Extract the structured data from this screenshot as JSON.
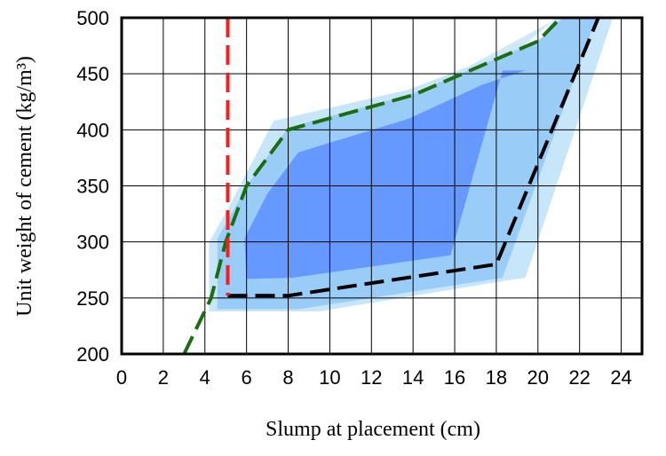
{
  "chart_data": {
    "type": "area",
    "xlabel": "Slump at placement (cm)",
    "ylabel": "Unit weight of cement (kg/m³)",
    "xlim": [
      0,
      25
    ],
    "ylim": [
      200,
      500
    ],
    "xticks": [
      0,
      2,
      4,
      6,
      8,
      10,
      12,
      14,
      16,
      18,
      20,
      22,
      24
    ],
    "yticks": [
      200,
      250,
      300,
      350,
      400,
      450,
      500
    ],
    "xtick_labels": [
      "0",
      "2",
      "4",
      "6",
      "8",
      "10",
      "12",
      "14",
      "16",
      "18",
      "20",
      "22",
      "24"
    ],
    "ytick_labels": [
      "200",
      "250",
      "300",
      "350",
      "400",
      "450",
      "500"
    ],
    "grid": true,
    "regions": [
      {
        "level": "outer",
        "color": "#cfe9fb",
        "polygon": [
          [
            4.2,
            240
          ],
          [
            8.5,
            240
          ],
          [
            18.5,
            268
          ],
          [
            22.6,
            500
          ],
          [
            23.6,
            500
          ],
          [
            21.1,
            425
          ],
          [
            19.3,
            268
          ],
          [
            9.5,
            238
          ],
          [
            4.2,
            238
          ],
          [
            4.2,
            300
          ],
          [
            7.5,
            408
          ],
          [
            15,
            440
          ],
          [
            21,
            500
          ],
          [
            21.1,
            503
          ]
        ]
      },
      {
        "level": "outer-fill",
        "color": "#c8e6fa",
        "polygon": [
          [
            4.2,
            238
          ],
          [
            9.5,
            238
          ],
          [
            18.5,
            266
          ],
          [
            19.4,
            268
          ],
          [
            23.6,
            500
          ],
          [
            20.8,
            500
          ],
          [
            20.2,
            482
          ],
          [
            13.8,
            436
          ],
          [
            7.3,
            408
          ],
          [
            4.2,
            297
          ]
        ]
      },
      {
        "level": "middle",
        "color": "#99ccf7",
        "polygon": [
          [
            4.6,
            240
          ],
          [
            8.5,
            240
          ],
          [
            18.3,
            268
          ],
          [
            22.8,
            500
          ],
          [
            21.2,
            500
          ],
          [
            20,
            479
          ],
          [
            13.8,
            431
          ],
          [
            8,
            402
          ],
          [
            6.2,
            355
          ],
          [
            4.6,
            303
          ]
        ]
      },
      {
        "level": "inner",
        "color": "#6699ff",
        "polygon": [
          [
            6,
            267
          ],
          [
            8.2,
            268
          ],
          [
            15.8,
            288
          ],
          [
            18.3,
            453
          ],
          [
            19.4,
            453
          ],
          [
            17.3,
            440
          ],
          [
            13.8,
            410
          ],
          [
            8.5,
            380
          ],
          [
            7,
            343
          ],
          [
            5.9,
            303
          ]
        ]
      }
    ],
    "lines": [
      {
        "style": "dashed",
        "color": "#1a6e10",
        "points": [
          [
            3,
            200
          ],
          [
            4.3,
            250
          ],
          [
            5,
            300
          ],
          [
            6,
            350
          ],
          [
            8,
            400
          ],
          [
            14,
            431
          ],
          [
            20,
            479
          ],
          [
            21.2,
            502
          ]
        ]
      },
      {
        "style": "dashed",
        "color": "#000000",
        "points": [
          [
            5.1,
            252
          ],
          [
            8,
            252
          ],
          [
            18,
            280
          ],
          [
            22.9,
            500
          ]
        ]
      },
      {
        "style": "dashed",
        "color": "#ff1a1a",
        "points": [
          [
            5.1,
            500
          ],
          [
            5.1,
            252
          ]
        ]
      }
    ]
  }
}
